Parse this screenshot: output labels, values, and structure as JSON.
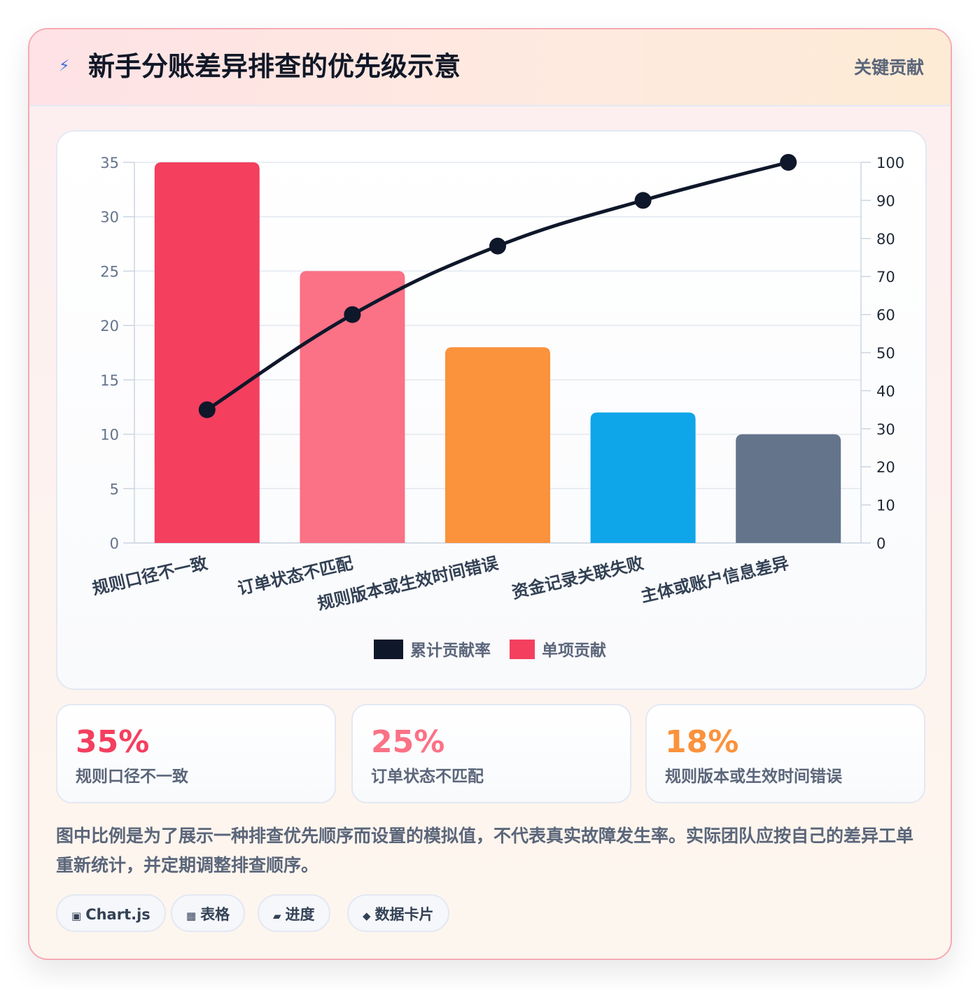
{
  "header": {
    "title": "新手分账差异排查的优先级示意",
    "badge": "关键贡献",
    "icon": "lightning-icon"
  },
  "chart_data": {
    "type": "bar",
    "categories": [
      "规则口径不一致",
      "订单状态不匹配",
      "规则版本或生效时间错误",
      "资金记录关联失败",
      "主体或账户信息差异"
    ],
    "series": [
      {
        "name": "单项贡献",
        "type": "bar",
        "axis": "left",
        "values": [
          35,
          25,
          18,
          12,
          10
        ],
        "colors": [
          "#f43f5e",
          "#fb7185",
          "#fb923c",
          "#0ea5e9",
          "#64748b"
        ]
      },
      {
        "name": "累计贡献率",
        "type": "line",
        "axis": "right",
        "values": [
          35,
          60,
          78,
          90,
          100
        ],
        "color": "#0f172a"
      }
    ],
    "left_axis": {
      "min": 0,
      "max": 35,
      "ticks": [
        0,
        5,
        10,
        15,
        20,
        25,
        30,
        35
      ]
    },
    "right_axis": {
      "min": 0,
      "max": 100,
      "ticks": [
        0,
        10,
        20,
        30,
        40,
        50,
        60,
        70,
        80,
        90,
        100
      ]
    },
    "grid": true,
    "legend_position": "bottom",
    "legend": [
      {
        "label": "累计贡献率",
        "color": "#0f172a"
      },
      {
        "label": "单项贡献",
        "color": "#f43f5e"
      }
    ]
  },
  "stats": [
    {
      "value": "35%",
      "label": "规则口径不一致",
      "color": "#f43f5e"
    },
    {
      "value": "25%",
      "label": "订单状态不匹配",
      "color": "#fb7185"
    },
    {
      "value": "18%",
      "label": "规则版本或生效时间错误",
      "color": "#fb923c"
    }
  ],
  "note": "图中比例是为了展示一种排查优先顺序而设置的模拟值，不代表真实故障发生率。实际团队应按自己的差异工单重新统计，并定期调整排查顺序。",
  "chips": [
    {
      "icon": "▣",
      "icon_name": "chart-icon",
      "label": "Chart.js"
    },
    {
      "icon": "▦",
      "icon_name": "table-icon",
      "label": "表格"
    },
    {
      "icon": "▰",
      "icon_name": "progress-icon",
      "label": "进度"
    },
    {
      "icon": "◆",
      "icon_name": "data-card-icon",
      "label": "数据卡片"
    }
  ]
}
